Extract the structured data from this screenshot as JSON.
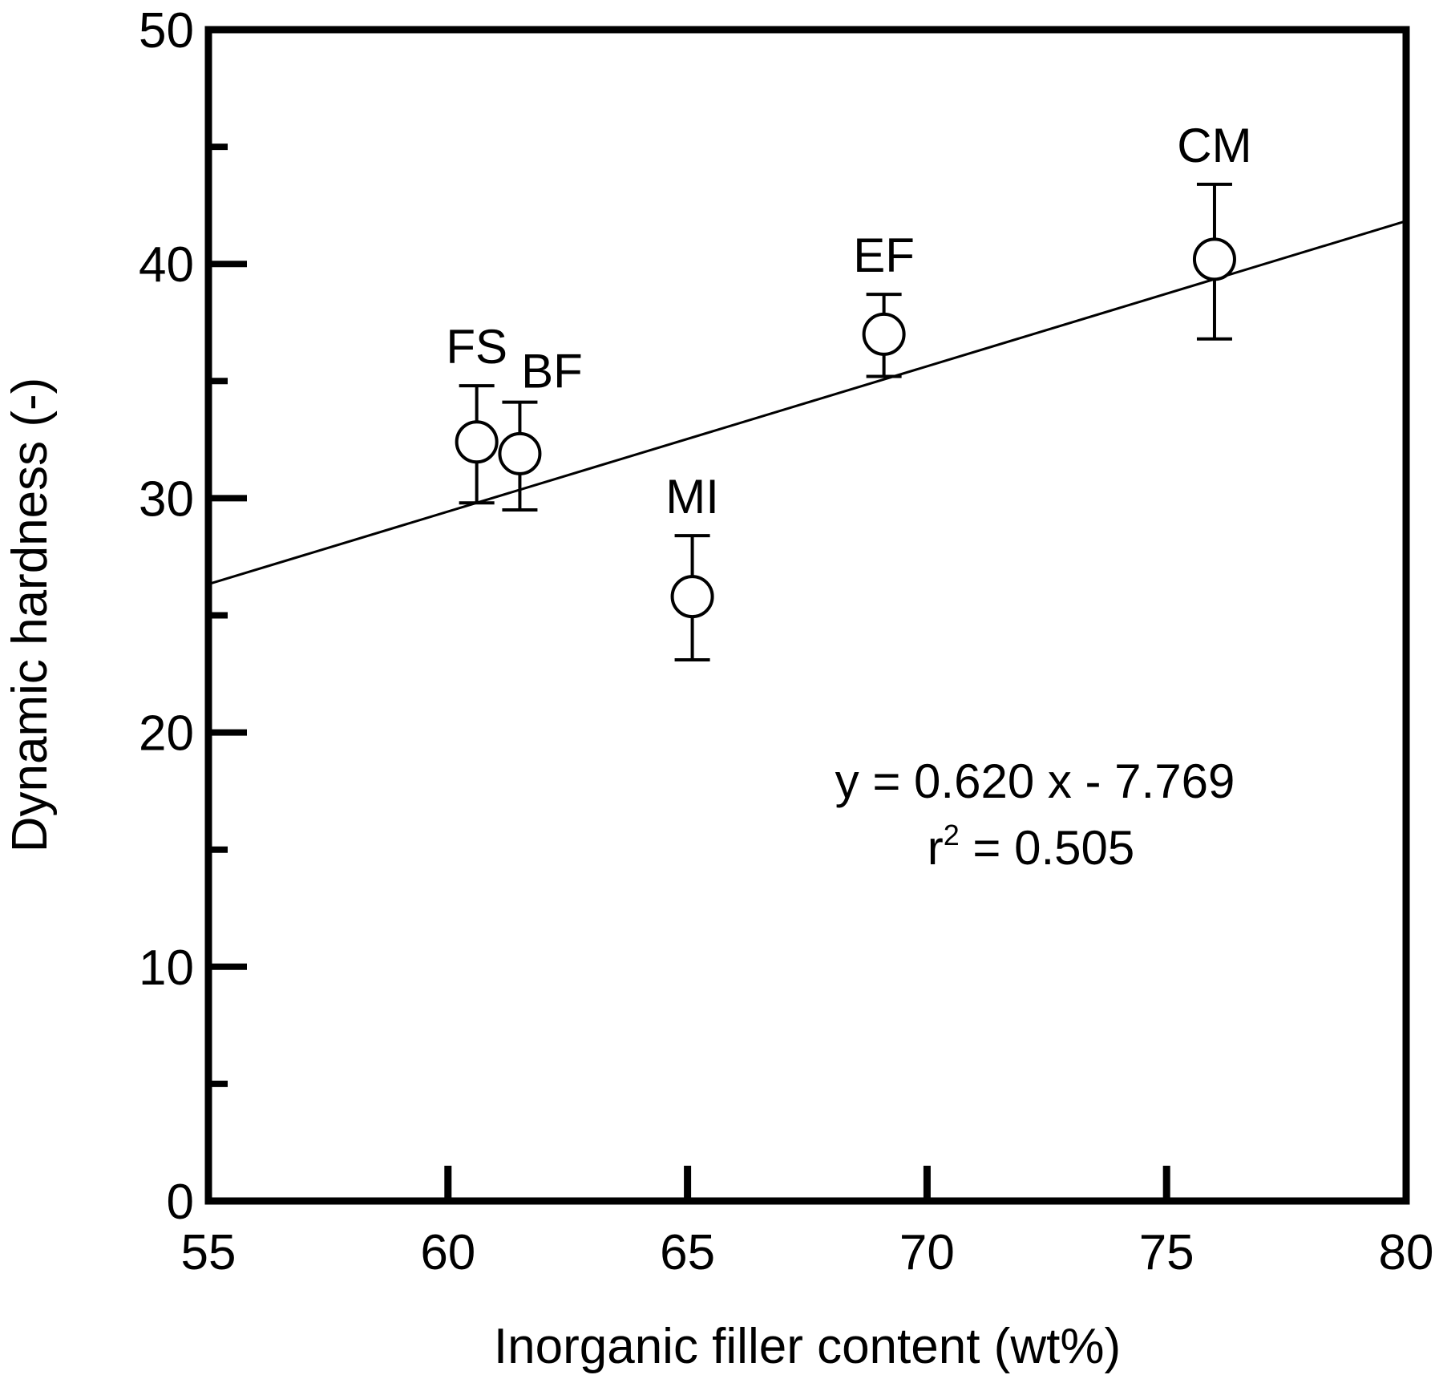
{
  "chart_data": {
    "type": "scatter",
    "title": "",
    "xlabel": "Inorganic filler content (wt%)",
    "ylabel": "Dynamic hardness (-)",
    "xlim": [
      55,
      80
    ],
    "ylim": [
      0,
      50
    ],
    "xticks": [
      "55",
      "60",
      "65",
      "70",
      "75",
      "80"
    ],
    "yticks": [
      "0",
      "10",
      "20",
      "30",
      "40",
      "50"
    ],
    "grid": false,
    "points": [
      {
        "label": "FS",
        "x": 60.6,
        "y": 32.4,
        "err_low": 29.8,
        "err_high": 34.8
      },
      {
        "label": "BF",
        "x": 61.5,
        "y": 31.9,
        "err_low": 29.5,
        "err_high": 34.1
      },
      {
        "label": "MI",
        "x": 65.1,
        "y": 25.8,
        "err_low": 23.1,
        "err_high": 28.4
      },
      {
        "label": "EF",
        "x": 69.1,
        "y": 37.0,
        "err_low": 35.2,
        "err_high": 38.7
      },
      {
        "label": "CM",
        "x": 76.0,
        "y": 40.2,
        "err_low": 36.8,
        "err_high": 43.4
      }
    ],
    "fit": {
      "slope": 0.62,
      "intercept": -7.769
    },
    "annotations": {
      "equation": "y = 0.620 x - 7.769",
      "r2_prefix": "r",
      "r2_sup": "2",
      "r2_value": " = 0.505"
    }
  }
}
